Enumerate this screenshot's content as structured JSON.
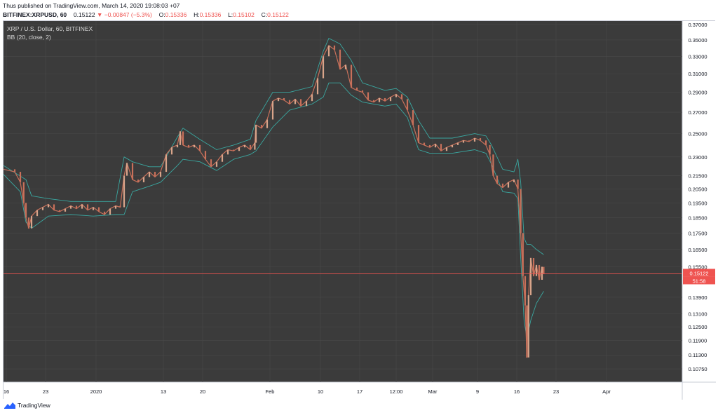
{
  "header": {
    "publish_text": "Thus published on TradingView.com, March 14, 2020 19:08:03 +07",
    "symbol": "BITFINEX:XRPUSD, 60",
    "last": "0.15122",
    "change": "−0.00847 (−5.3%)",
    "open_label": "O:",
    "open": "0.15336",
    "high_label": "H:",
    "high": "0.15336",
    "low_label": "L:",
    "low": "0.15102",
    "close_label": "C:",
    "close": "0.15122"
  },
  "legend": {
    "title": "XRP / U.S. Dollar, 60, BITFINEX",
    "indicator": "BB (20, close, 2)"
  },
  "price_tag": {
    "price": "0.15122",
    "countdown": "51:58"
  },
  "footer": {
    "brand": "TradingView"
  },
  "colors": {
    "background": "#3b3b3b",
    "grid": "#4a4a4a",
    "up": "#d8a48a",
    "down": "#c8705a",
    "band": "#3aa7a0",
    "price_line": "#ef5350"
  },
  "chart_data": {
    "type": "line",
    "title": "XRP / U.S. Dollar, 60, BITFINEX",
    "indicator": "BB (20, close, 2)",
    "ylim": [
      0.1025,
      0.3745
    ],
    "y_ticks": [
      "0.37000",
      "0.35000",
      "0.33000",
      "0.31000",
      "0.29000",
      "0.27000",
      "0.25000",
      "0.23000",
      "0.21500",
      "0.20500",
      "0.19500",
      "0.18500",
      "0.17500",
      "0.16500",
      "0.15500",
      "0.13900",
      "0.13100",
      "0.12500",
      "0.11900",
      "0.11300",
      "0.10750"
    ],
    "x_ticks": [
      {
        "label": "16",
        "t": 0.5
      },
      {
        "label": "23",
        "t": 7.5
      },
      {
        "label": "2020",
        "t": 16.5
      },
      {
        "label": "13",
        "t": 28.5
      },
      {
        "label": "20",
        "t": 35.5
      },
      {
        "label": "Feb",
        "t": 47.5
      },
      {
        "label": "10",
        "t": 56.5
      },
      {
        "label": "17",
        "t": 63.5
      },
      {
        "label": "12:00",
        "t": 70
      },
      {
        "label": "Mar",
        "t": 76.5
      },
      {
        "label": "9",
        "t": 84.5
      },
      {
        "label": "16",
        "t": 91.5
      },
      {
        "label": "23",
        "t": 98.5
      },
      {
        "label": "Apr",
        "t": 107.5
      }
    ],
    "x_label_positions": [
      "Dec 16",
      "Dec 23",
      "Jan 1 2020",
      "Jan 13",
      "Jan 20",
      "Feb 1",
      "Feb 10",
      "Feb 17",
      "Feb 21 12:00",
      "Mar 1",
      "Mar 9",
      "Mar 16",
      "Mar 23",
      "Apr 1"
    ],
    "x_range_days": [
      0,
      121
    ],
    "last_price": 0.15122,
    "series": [
      {
        "name": "XRPUSD",
        "points": [
          [
            0,
            0.22
          ],
          [
            2,
            0.218
          ],
          [
            3,
            0.21
          ],
          [
            3.6,
            0.195
          ],
          [
            4,
            0.185
          ],
          [
            4.5,
            0.178
          ],
          [
            5,
            0.186
          ],
          [
            6,
            0.19
          ],
          [
            7,
            0.192
          ],
          [
            8,
            0.194
          ],
          [
            9,
            0.19
          ],
          [
            10,
            0.189
          ],
          [
            11,
            0.191
          ],
          [
            12,
            0.193
          ],
          [
            13,
            0.191
          ],
          [
            14,
            0.194
          ],
          [
            15,
            0.19
          ],
          [
            16,
            0.192
          ],
          [
            17,
            0.189
          ],
          [
            18,
            0.187
          ],
          [
            19,
            0.191
          ],
          [
            20,
            0.193
          ],
          [
            20.8,
            0.192
          ],
          [
            21.5,
            0.215
          ],
          [
            22,
            0.225
          ],
          [
            23,
            0.212
          ],
          [
            24,
            0.21
          ],
          [
            25,
            0.214
          ],
          [
            26,
            0.218
          ],
          [
            27,
            0.214
          ],
          [
            28,
            0.218
          ],
          [
            29,
            0.232
          ],
          [
            30,
            0.238
          ],
          [
            31,
            0.24
          ],
          [
            31.5,
            0.252
          ],
          [
            32,
            0.24
          ],
          [
            33,
            0.238
          ],
          [
            34,
            0.24
          ],
          [
            35,
            0.235
          ],
          [
            36,
            0.228
          ],
          [
            37,
            0.222
          ],
          [
            38,
            0.226
          ],
          [
            39,
            0.232
          ],
          [
            40,
            0.236
          ],
          [
            41,
            0.235
          ],
          [
            42,
            0.238
          ],
          [
            43,
            0.24
          ],
          [
            44,
            0.236
          ],
          [
            44.8,
            0.242
          ],
          [
            45,
            0.258
          ],
          [
            46,
            0.255
          ],
          [
            47,
            0.263
          ],
          [
            48,
            0.281
          ],
          [
            49,
            0.284
          ],
          [
            50,
            0.282
          ],
          [
            51,
            0.278
          ],
          [
            52,
            0.283
          ],
          [
            53,
            0.276
          ],
          [
            54,
            0.281
          ],
          [
            55,
            0.288
          ],
          [
            56,
            0.305
          ],
          [
            57,
            0.33
          ],
          [
            58,
            0.343
          ],
          [
            59,
            0.338
          ],
          [
            60,
            0.315
          ],
          [
            61,
            0.32
          ],
          [
            62,
            0.295
          ],
          [
            63,
            0.292
          ],
          [
            64,
            0.29
          ],
          [
            65,
            0.282
          ],
          [
            66,
            0.28
          ],
          [
            67,
            0.284
          ],
          [
            68,
            0.281
          ],
          [
            69,
            0.285
          ],
          [
            70,
            0.288
          ],
          [
            71,
            0.283
          ],
          [
            72,
            0.272
          ],
          [
            73,
            0.258
          ],
          [
            74,
            0.242
          ],
          [
            75,
            0.24
          ],
          [
            76,
            0.238
          ],
          [
            77,
            0.241
          ],
          [
            78,
            0.235
          ],
          [
            79,
            0.238
          ],
          [
            80,
            0.24
          ],
          [
            81,
            0.242
          ],
          [
            82,
            0.244
          ],
          [
            83,
            0.243
          ],
          [
            84,
            0.246
          ],
          [
            85,
            0.244
          ],
          [
            86,
            0.24
          ],
          [
            86.7,
            0.232
          ],
          [
            87.3,
            0.215
          ],
          [
            88,
            0.209
          ],
          [
            89,
            0.206
          ],
          [
            90,
            0.21
          ],
          [
            91,
            0.212
          ],
          [
            91.7,
            0.205
          ],
          [
            92.2,
            0.175
          ],
          [
            92.6,
            0.15
          ],
          [
            93,
            0.135
          ],
          [
            93.3,
            0.112
          ],
          [
            93.6,
            0.14
          ],
          [
            94,
            0.16
          ],
          [
            94.5,
            0.15
          ],
          [
            95,
            0.156
          ],
          [
            95.5,
            0.148
          ],
          [
            96,
            0.155
          ],
          [
            96.3,
            0.151
          ]
        ]
      },
      {
        "name": "BB upper",
        "points": [
          [
            0,
            0.223
          ],
          [
            4,
            0.212
          ],
          [
            5,
            0.2
          ],
          [
            8,
            0.198
          ],
          [
            12,
            0.196
          ],
          [
            16,
            0.196
          ],
          [
            20,
            0.196
          ],
          [
            21.5,
            0.23
          ],
          [
            23,
            0.226
          ],
          [
            26,
            0.222
          ],
          [
            28,
            0.222
          ],
          [
            31,
            0.247
          ],
          [
            32,
            0.255
          ],
          [
            35,
            0.245
          ],
          [
            38,
            0.236
          ],
          [
            41,
            0.24
          ],
          [
            44,
            0.245
          ],
          [
            45,
            0.262
          ],
          [
            48,
            0.29
          ],
          [
            51,
            0.29
          ],
          [
            55,
            0.296
          ],
          [
            57,
            0.336
          ],
          [
            58,
            0.352
          ],
          [
            60,
            0.345
          ],
          [
            62,
            0.325
          ],
          [
            64,
            0.3
          ],
          [
            68,
            0.292
          ],
          [
            70,
            0.294
          ],
          [
            72,
            0.285
          ],
          [
            74,
            0.262
          ],
          [
            76,
            0.246
          ],
          [
            80,
            0.246
          ],
          [
            84,
            0.25
          ],
          [
            86,
            0.248
          ],
          [
            87,
            0.24
          ],
          [
            89,
            0.22
          ],
          [
            91,
            0.218
          ],
          [
            91.7,
            0.228
          ],
          [
            92.2,
            0.21
          ],
          [
            92.8,
            0.172
          ],
          [
            93.3,
            0.168
          ],
          [
            94,
            0.168
          ],
          [
            95,
            0.165
          ],
          [
            96.3,
            0.162
          ]
        ]
      },
      {
        "name": "BB lower",
        "points": [
          [
            0,
            0.216
          ],
          [
            3,
            0.203
          ],
          [
            4,
            0.182
          ],
          [
            5,
            0.178
          ],
          [
            8,
            0.186
          ],
          [
            12,
            0.187
          ],
          [
            16,
            0.186
          ],
          [
            20,
            0.187
          ],
          [
            21.5,
            0.187
          ],
          [
            23,
            0.203
          ],
          [
            26,
            0.207
          ],
          [
            28,
            0.21
          ],
          [
            31,
            0.223
          ],
          [
            32,
            0.228
          ],
          [
            35,
            0.226
          ],
          [
            38,
            0.219
          ],
          [
            41,
            0.228
          ],
          [
            44,
            0.232
          ],
          [
            45,
            0.235
          ],
          [
            48,
            0.256
          ],
          [
            51,
            0.272
          ],
          [
            55,
            0.278
          ],
          [
            57,
            0.285
          ],
          [
            58,
            0.3
          ],
          [
            60,
            0.3
          ],
          [
            62,
            0.287
          ],
          [
            64,
            0.28
          ],
          [
            68,
            0.276
          ],
          [
            70,
            0.278
          ],
          [
            72,
            0.265
          ],
          [
            74,
            0.236
          ],
          [
            76,
            0.233
          ],
          [
            80,
            0.233
          ],
          [
            84,
            0.236
          ],
          [
            86,
            0.233
          ],
          [
            87,
            0.224
          ],
          [
            89,
            0.203
          ],
          [
            91,
            0.202
          ],
          [
            91.7,
            0.198
          ],
          [
            92.2,
            0.16
          ],
          [
            92.8,
            0.128
          ],
          [
            93.3,
            0.12
          ],
          [
            94,
            0.128
          ],
          [
            95,
            0.136
          ],
          [
            96.3,
            0.142
          ]
        ]
      }
    ]
  }
}
